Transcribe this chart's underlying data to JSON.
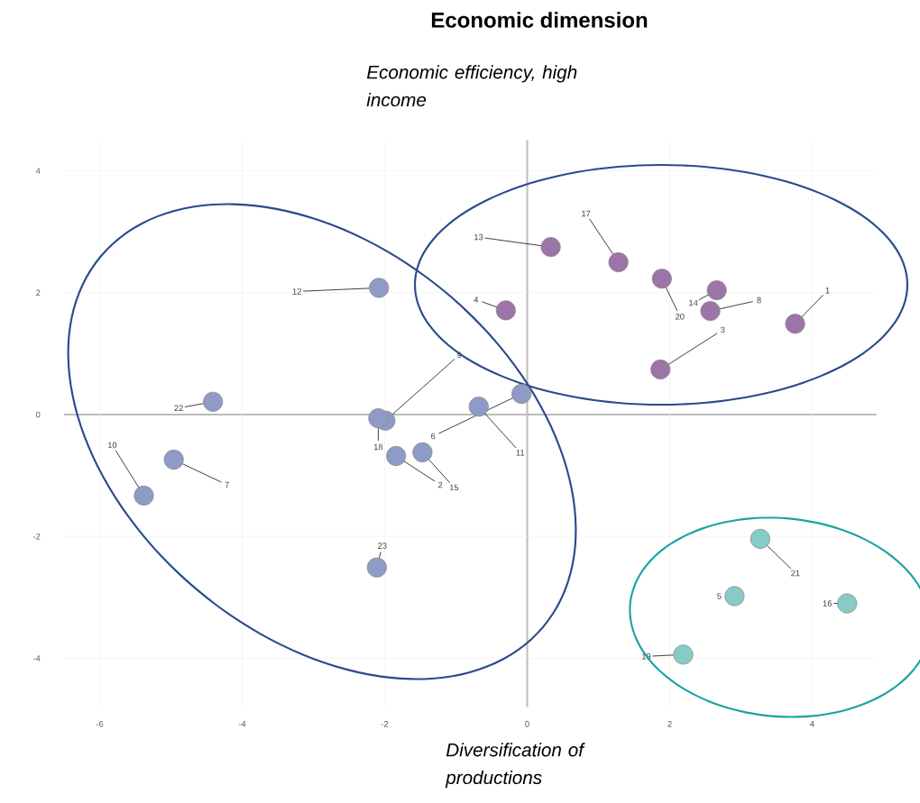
{
  "chart_data": {
    "type": "scatter",
    "title": "Economic dimension",
    "xlabel": "Diversification of productions",
    "ylabel": "Economic efficiency, high income",
    "xlim": [
      -6.5,
      4.9
    ],
    "ylim": [
      -4.8,
      4.5
    ],
    "xticks": [
      -6,
      -4,
      -2,
      0,
      2,
      4
    ],
    "yticks": [
      -4,
      -2,
      0,
      2,
      4
    ],
    "grid": true,
    "series": [
      {
        "color": "#9b74a8",
        "x": [
          0.33,
          1.28,
          1.89,
          2.66,
          2.57,
          3.76,
          -0.3,
          1.87
        ],
        "values": [
          2.75,
          2.5,
          2.23,
          2.04,
          1.7,
          1.49,
          1.71,
          0.74
        ]
      },
      {
        "color": "#8d9bc6",
        "x": [
          -2.08,
          -4.41,
          -0.08,
          -0.68,
          -1.99,
          -2.09,
          -1.47,
          -1.84,
          -4.96,
          -5.38,
          -2.11
        ],
        "values": [
          2.08,
          0.21,
          0.34,
          0.13,
          -0.1,
          -0.06,
          -0.62,
          -0.68,
          -0.74,
          -1.33,
          -2.51
        ]
      },
      {
        "color": "#86cbc8",
        "x": [
          3.27,
          2.91,
          4.49,
          2.19
        ],
        "values": [
          -2.04,
          -2.98,
          -3.1,
          -3.94
        ]
      }
    ],
    "annotations": [
      {
        "text": "13",
        "x": 0.33,
        "y": 2.75
      },
      {
        "text": "17",
        "x": 1.28,
        "y": 2.5
      },
      {
        "text": "20",
        "x": 1.89,
        "y": 2.23
      },
      {
        "text": "14",
        "x": 2.66,
        "y": 2.04
      },
      {
        "text": "8",
        "x": 2.57,
        "y": 1.7
      },
      {
        "text": "1",
        "x": 3.76,
        "y": 1.49
      },
      {
        "text": "4",
        "x": -0.3,
        "y": 1.71
      },
      {
        "text": "3",
        "x": 1.87,
        "y": 0.74
      },
      {
        "text": "12",
        "x": -2.08,
        "y": 2.08
      },
      {
        "text": "22",
        "x": -4.41,
        "y": 0.21
      },
      {
        "text": "6",
        "x": -0.08,
        "y": 0.34
      },
      {
        "text": "11",
        "x": -0.68,
        "y": 0.13
      },
      {
        "text": "9",
        "x": -1.99,
        "y": -0.1
      },
      {
        "text": "18",
        "x": -2.09,
        "y": -0.06
      },
      {
        "text": "15",
        "x": -1.47,
        "y": -0.62
      },
      {
        "text": "2",
        "x": -1.84,
        "y": -0.68
      },
      {
        "text": "7",
        "x": -4.96,
        "y": -0.74
      },
      {
        "text": "10",
        "x": -5.38,
        "y": -1.33
      },
      {
        "text": "23",
        "x": -2.11,
        "y": -2.51
      },
      {
        "text": "21",
        "x": 3.27,
        "y": -2.04
      },
      {
        "text": "5",
        "x": 2.91,
        "y": -2.98
      },
      {
        "text": "16",
        "x": 4.49,
        "y": -3.1
      },
      {
        "text": "19",
        "x": 2.19,
        "y": -3.94
      }
    ]
  }
}
